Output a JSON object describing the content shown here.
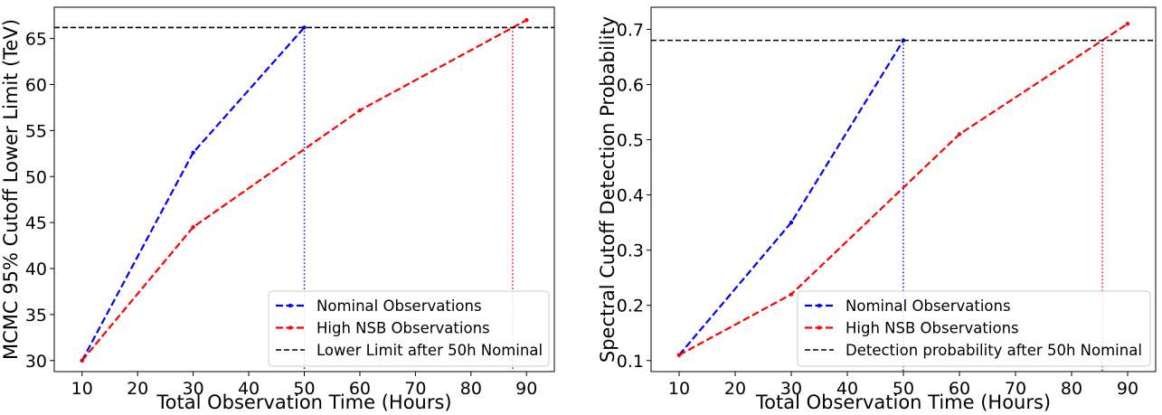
{
  "chart_data": [
    {
      "type": "line",
      "xlabel": "Total Observation Time (Hours)",
      "ylabel": "MCMC 95% Cutoff Lower Limit (TeV)",
      "xlim": [
        5,
        95
      ],
      "ylim": [
        28.8,
        68.4
      ],
      "xticks": [
        10,
        20,
        30,
        40,
        50,
        60,
        70,
        80,
        90
      ],
      "yticks": [
        30,
        35,
        40,
        45,
        50,
        55,
        60,
        65
      ],
      "grid": false,
      "legend_position": "lower-right",
      "series": [
        {
          "name": "Nominal Observations",
          "color": "#0000ff",
          "style": "dashed",
          "marker": "point",
          "x": [
            10,
            30,
            50
          ],
          "y": [
            30.0,
            52.6,
            66.2
          ]
        },
        {
          "name": "High NSB Observations",
          "color": "#ff0000",
          "style": "dashed",
          "marker": "point",
          "x": [
            10,
            30,
            60,
            90
          ],
          "y": [
            30.0,
            44.5,
            57.2,
            67.0
          ]
        },
        {
          "name": "Lower Limit after 50h Nominal",
          "color": "#000000",
          "style": "dashed",
          "kind": "hline",
          "y": 66.2
        }
      ],
      "vlines": [
        {
          "x": 50,
          "y": 66.2,
          "color": "#0000ff",
          "style": "dotted"
        },
        {
          "x": 87.5,
          "y": 66.2,
          "color": "#ff0000",
          "style": "dotted"
        }
      ]
    },
    {
      "type": "line",
      "xlabel": "Total Observation Time (Hours)",
      "ylabel": "Spectral Cutoff Detection Probability",
      "xlim": [
        5,
        95
      ],
      "ylim": [
        0.08,
        0.74
      ],
      "xticks": [
        10,
        20,
        30,
        40,
        50,
        60,
        70,
        80,
        90
      ],
      "yticks": [
        0.1,
        0.2,
        0.3,
        0.4,
        0.5,
        0.6,
        0.7
      ],
      "grid": false,
      "legend_position": "lower-right",
      "series": [
        {
          "name": "Nominal Observations",
          "color": "#0000ff",
          "style": "dashed",
          "marker": "point",
          "x": [
            10,
            30,
            50
          ],
          "y": [
            0.11,
            0.35,
            0.68
          ]
        },
        {
          "name": "High NSB Observations",
          "color": "#ff0000",
          "style": "dashed",
          "marker": "point",
          "x": [
            10,
            30,
            60,
            90
          ],
          "y": [
            0.11,
            0.22,
            0.51,
            0.71
          ]
        },
        {
          "name": "Detection probability after 50h Nominal",
          "color": "#000000",
          "style": "dashed",
          "kind": "hline",
          "y": 0.68
        }
      ],
      "vlines": [
        {
          "x": 50,
          "y": 0.68,
          "color": "#0000ff",
          "style": "dotted"
        },
        {
          "x": 85.5,
          "y": 0.68,
          "color": "#ff0000",
          "style": "dotted"
        }
      ]
    }
  ]
}
